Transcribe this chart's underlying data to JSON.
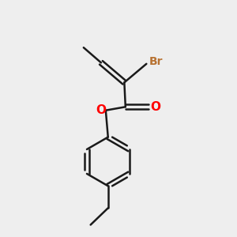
{
  "bg_color": "#eeeeee",
  "bond_color": "#1a1a1a",
  "oxygen_color": "#ff0000",
  "bromine_color": "#b87333",
  "line_width": 1.8,
  "font_size": 10,
  "fig_width": 3.0,
  "fig_height": 3.0,
  "dpi": 100,
  "xlim": [
    0,
    10
  ],
  "ylim": [
    0,
    10
  ]
}
